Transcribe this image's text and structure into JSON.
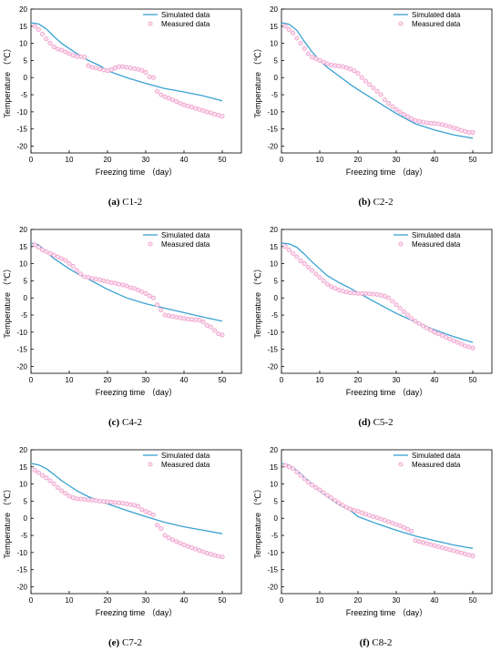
{
  "figure": {
    "legend": {
      "simulated": "Simulated data",
      "measured": "Measured data"
    },
    "colors": {
      "simulated": "#3aa2d1",
      "measured": "#f0a2cd"
    },
    "xlabel": "Freezing time （day）",
    "ylabel": "Temperature （℃）"
  },
  "chart_data": [
    {
      "type": "line",
      "panel_label": "(a)",
      "panel_name": "C1-2",
      "xlabel": "Freezing time （day）",
      "ylabel": "Temperature （℃）",
      "xlim": [
        0,
        55
      ],
      "ylim": [
        -22,
        20
      ],
      "xticks": [
        0,
        10,
        20,
        30,
        40,
        50
      ],
      "yticks": [
        -20,
        -15,
        -10,
        -5,
        0,
        5,
        10,
        15,
        20
      ],
      "legend_position": "top-right",
      "series": [
        {
          "name": "Simulated data",
          "x": [
            0,
            2,
            4,
            6,
            8,
            10,
            12,
            15,
            18,
            20,
            25,
            30,
            35,
            40,
            45,
            50
          ],
          "y": [
            16,
            15.7,
            14.2,
            12,
            10,
            8.5,
            7,
            5,
            3.5,
            2,
            0,
            -1.7,
            -3.2,
            -4.2,
            -5.3,
            -6.8
          ]
        },
        {
          "name": "Measured data",
          "x": [
            1,
            2,
            3,
            4,
            5,
            6,
            7,
            8,
            9,
            10,
            11,
            12,
            13,
            14,
            15,
            16,
            17,
            18,
            19,
            20,
            21,
            22,
            23,
            24,
            25,
            26,
            27,
            28,
            29,
            30,
            31,
            32,
            33,
            34,
            35,
            36,
            37,
            38,
            39,
            40,
            41,
            42,
            43,
            44,
            45,
            46,
            47,
            48,
            49,
            50
          ],
          "y": [
            15,
            14,
            12.7,
            11.3,
            10,
            9,
            8.3,
            8,
            7.5,
            7,
            6.5,
            6.2,
            6.1,
            6,
            3.5,
            3,
            2.8,
            2.5,
            2.2,
            2,
            2.3,
            2.8,
            3.2,
            3.2,
            3,
            2.8,
            2.6,
            2.4,
            2.1,
            1.5,
            0.2,
            0,
            -4,
            -5,
            -5.6,
            -6,
            -6.5,
            -7,
            -7.5,
            -8,
            -8.3,
            -8.6,
            -9,
            -9.3,
            -9.6,
            -10,
            -10.3,
            -10.7,
            -11,
            -11.3
          ]
        }
      ]
    },
    {
      "type": "line",
      "panel_label": "(b)",
      "panel_name": "C2-2",
      "xlabel": "Freezing time （day）",
      "ylabel": "Temperature （℃）",
      "xlim": [
        0,
        55
      ],
      "ylim": [
        -22,
        20
      ],
      "xticks": [
        0,
        10,
        20,
        30,
        40,
        50
      ],
      "yticks": [
        -20,
        -15,
        -10,
        -5,
        0,
        5,
        10,
        15,
        20
      ],
      "legend_position": "top-right",
      "series": [
        {
          "name": "Simulated data",
          "x": [
            0,
            2,
            4,
            6,
            8,
            10,
            12,
            15,
            18,
            20,
            25,
            30,
            35,
            40,
            45,
            50
          ],
          "y": [
            16,
            15.6,
            13.8,
            10.5,
            7.5,
            5,
            3,
            0.5,
            -2,
            -3.5,
            -7,
            -10.5,
            -13.5,
            -15.3,
            -16.7,
            -17.7
          ]
        },
        {
          "name": "Measured data",
          "x": [
            1,
            2,
            3,
            4,
            5,
            6,
            7,
            8,
            9,
            10,
            11,
            12,
            13,
            14,
            15,
            16,
            17,
            18,
            19,
            20,
            21,
            22,
            23,
            24,
            25,
            26,
            27,
            28,
            29,
            30,
            31,
            32,
            33,
            34,
            35,
            36,
            37,
            38,
            39,
            40,
            41,
            42,
            43,
            44,
            45,
            46,
            47,
            48,
            49,
            50
          ],
          "y": [
            15,
            14,
            13,
            11.5,
            10,
            8.5,
            7,
            6,
            5.5,
            5,
            4.5,
            4,
            3.7,
            3.5,
            3.4,
            3.2,
            2.9,
            2.5,
            2,
            1.2,
            0,
            -1,
            -2,
            -3,
            -4,
            -5,
            -6.5,
            -7.5,
            -8.5,
            -9.3,
            -10,
            -10.7,
            -11.4,
            -12,
            -12.5,
            -12.8,
            -13,
            -13.2,
            -13.3,
            -13.4,
            -13.5,
            -13.7,
            -14,
            -14.3,
            -14.7,
            -15,
            -15.4,
            -15.7,
            -16,
            -16
          ]
        }
      ]
    },
    {
      "type": "line",
      "panel_label": "(c)",
      "panel_name": "C4-2",
      "xlabel": "Freezing time （day）",
      "ylabel": "Temperature （℃）",
      "xlim": [
        0,
        55
      ],
      "ylim": [
        -22,
        20
      ],
      "xticks": [
        0,
        10,
        20,
        30,
        40,
        50
      ],
      "yticks": [
        -20,
        -15,
        -10,
        -5,
        0,
        5,
        10,
        15,
        20
      ],
      "legend_position": "top-right",
      "series": [
        {
          "name": "Simulated data",
          "x": [
            0,
            2,
            4,
            6,
            8,
            10,
            12,
            15,
            18,
            20,
            25,
            30,
            35,
            40,
            45,
            50
          ],
          "y": [
            16,
            15.5,
            13.5,
            11.5,
            10,
            8.5,
            7.2,
            5.5,
            3.7,
            2.5,
            0,
            -1.7,
            -3,
            -4.3,
            -5.6,
            -6.8
          ]
        },
        {
          "name": "Measured data",
          "x": [
            1,
            2,
            3,
            4,
            5,
            6,
            7,
            8,
            9,
            10,
            11,
            12,
            13,
            14,
            15,
            16,
            17,
            18,
            19,
            20,
            21,
            22,
            23,
            24,
            25,
            26,
            27,
            28,
            29,
            30,
            31,
            32,
            33,
            34,
            35,
            36,
            37,
            38,
            39,
            40,
            41,
            42,
            43,
            44,
            45,
            46,
            47,
            48,
            49,
            50
          ],
          "y": [
            15.5,
            14.8,
            14,
            13.5,
            13,
            12.5,
            12,
            11.5,
            11,
            10,
            9.2,
            8,
            7,
            6.2,
            6,
            5.7,
            5.5,
            5.3,
            5,
            4.8,
            4.5,
            4.3,
            4,
            3.8,
            3.5,
            3,
            2.8,
            2.3,
            1.8,
            1.3,
            0.6,
            0,
            -2,
            -3.5,
            -5,
            -5.2,
            -5.4,
            -5.6,
            -5.8,
            -6,
            -6.2,
            -6.3,
            -6.4,
            -6.5,
            -7,
            -8,
            -8.5,
            -9.5,
            -10.5,
            -10.8
          ]
        }
      ]
    },
    {
      "type": "line",
      "panel_label": "(d)",
      "panel_name": "C5-2",
      "xlabel": "Freezing time （day）",
      "ylabel": "Temperature （℃）",
      "xlim": [
        0,
        55
      ],
      "ylim": [
        -22,
        20
      ],
      "xticks": [
        0,
        10,
        20,
        30,
        40,
        50
      ],
      "yticks": [
        -20,
        -15,
        -10,
        -5,
        0,
        5,
        10,
        15,
        20
      ],
      "legend_position": "top-right",
      "series": [
        {
          "name": "Simulated data",
          "x": [
            0,
            2,
            4,
            6,
            8,
            10,
            12,
            15,
            18,
            20,
            25,
            30,
            35,
            40,
            45,
            50
          ],
          "y": [
            16,
            15.8,
            14.8,
            12.8,
            10.5,
            8.5,
            6.5,
            4.5,
            2.8,
            1.5,
            -1.5,
            -4.5,
            -7,
            -9.3,
            -11.3,
            -13
          ]
        },
        {
          "name": "Measured data",
          "x": [
            1,
            2,
            3,
            4,
            5,
            6,
            7,
            8,
            9,
            10,
            11,
            12,
            13,
            14,
            15,
            16,
            17,
            18,
            19,
            20,
            21,
            22,
            23,
            24,
            25,
            26,
            27,
            28,
            29,
            30,
            31,
            32,
            33,
            34,
            35,
            36,
            37,
            38,
            39,
            40,
            41,
            42,
            43,
            44,
            45,
            46,
            47,
            48,
            49,
            50
          ],
          "y": [
            15,
            14,
            13,
            12,
            10.8,
            10,
            9,
            8,
            7,
            6,
            5,
            4,
            3.3,
            2.8,
            2.3,
            2,
            1.7,
            1.5,
            1.4,
            1.3,
            1.3,
            1.3,
            1.2,
            1.1,
            1,
            0.8,
            0.5,
            0,
            -1,
            -2,
            -3,
            -4,
            -5,
            -6,
            -6.8,
            -7.5,
            -8.2,
            -8.8,
            -9.4,
            -10,
            -10.5,
            -11,
            -11.5,
            -12,
            -12.5,
            -13,
            -13.5,
            -14,
            -14.3,
            -14.6
          ]
        }
      ]
    },
    {
      "type": "line",
      "panel_label": "(e)",
      "panel_name": "C7-2",
      "xlabel": "Freezing time （day）",
      "ylabel": "Temperature （℃）",
      "xlim": [
        0,
        55
      ],
      "ylim": [
        -22,
        20
      ],
      "xticks": [
        0,
        10,
        20,
        30,
        40,
        50
      ],
      "yticks": [
        -20,
        -15,
        -10,
        -5,
        0,
        5,
        10,
        15,
        20
      ],
      "legend_position": "top-right",
      "series": [
        {
          "name": "Simulated data",
          "x": [
            0,
            2,
            4,
            6,
            8,
            10,
            12,
            15,
            18,
            20,
            25,
            30,
            35,
            40,
            45,
            50
          ],
          "y": [
            16,
            15.6,
            14.5,
            12.8,
            11,
            9.5,
            8,
            6.3,
            5,
            4.2,
            2.3,
            0.5,
            -1.2,
            -2.5,
            -3.5,
            -4.5
          ]
        },
        {
          "name": "Measured data",
          "x": [
            1,
            2,
            3,
            4,
            5,
            6,
            7,
            8,
            9,
            10,
            11,
            12,
            13,
            14,
            15,
            16,
            17,
            18,
            19,
            20,
            21,
            22,
            23,
            24,
            25,
            26,
            27,
            28,
            29,
            30,
            31,
            32,
            33,
            34,
            35,
            36,
            37,
            38,
            39,
            40,
            41,
            42,
            43,
            44,
            45,
            46,
            47,
            48,
            49,
            50
          ],
          "y": [
            14,
            13.3,
            12.5,
            11.8,
            11,
            10,
            9,
            8,
            7.3,
            6.5,
            6,
            5.7,
            5.6,
            5.5,
            5.4,
            5.3,
            5.2,
            5,
            4.9,
            4.8,
            4.7,
            4.6,
            4.5,
            4.4,
            4.2,
            4,
            3.8,
            3.5,
            2.5,
            2,
            1.5,
            1,
            -2,
            -3,
            -5,
            -5.7,
            -6.3,
            -6.8,
            -7.3,
            -7.8,
            -8.2,
            -8.6,
            -9,
            -9.4,
            -9.8,
            -10.2,
            -10.5,
            -10.8,
            -11.1,
            -11.3
          ]
        }
      ]
    },
    {
      "type": "line",
      "panel_label": "(f)",
      "panel_name": "C8-2",
      "xlabel": "Freezing time （day）",
      "ylabel": "Temperature （℃）",
      "xlim": [
        0,
        55
      ],
      "ylim": [
        -22,
        20
      ],
      "xticks": [
        0,
        10,
        20,
        30,
        40,
        50
      ],
      "yticks": [
        -20,
        -15,
        -10,
        -5,
        0,
        5,
        10,
        15,
        20
      ],
      "legend_position": "top-right",
      "series": [
        {
          "name": "Simulated data",
          "x": [
            0,
            2,
            4,
            6,
            8,
            10,
            12,
            15,
            18,
            20,
            25,
            30,
            35,
            40,
            45,
            50
          ],
          "y": [
            16,
            15.5,
            14,
            12,
            10,
            8,
            6.3,
            4,
            2.3,
            0.5,
            -1.6,
            -3.5,
            -5.2,
            -6.5,
            -7.8,
            -8.8
          ]
        },
        {
          "name": "Measured data",
          "x": [
            1,
            2,
            3,
            4,
            5,
            6,
            7,
            8,
            9,
            10,
            11,
            12,
            13,
            14,
            15,
            16,
            17,
            18,
            19,
            20,
            21,
            22,
            23,
            24,
            25,
            26,
            27,
            28,
            29,
            30,
            31,
            32,
            33,
            34,
            35,
            36,
            37,
            38,
            39,
            40,
            41,
            42,
            43,
            44,
            45,
            46,
            47,
            48,
            49,
            50
          ],
          "y": [
            15.5,
            15,
            14.5,
            13.5,
            12.5,
            11.5,
            10.5,
            9.7,
            9,
            8.3,
            7.5,
            6.7,
            6,
            5.2,
            4.5,
            3.8,
            3.2,
            2.7,
            2.3,
            2,
            1.6,
            1.2,
            0.8,
            0.5,
            0.2,
            -0.2,
            -0.6,
            -1,
            -1.4,
            -1.8,
            -2.2,
            -2.7,
            -3.2,
            -3.8,
            -6.5,
            -6.8,
            -7.1,
            -7.4,
            -7.7,
            -8,
            -8.3,
            -8.6,
            -8.9,
            -9.2,
            -9.5,
            -9.8,
            -10.1,
            -10.4,
            -10.7,
            -11
          ]
        }
      ]
    }
  ]
}
